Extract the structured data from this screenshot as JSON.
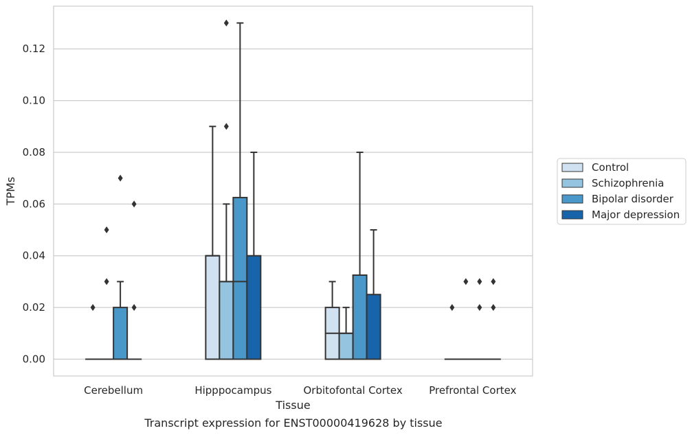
{
  "caption": "Transcript expression for ENST00000419628 by tissue",
  "chart_data": {
    "type": "box",
    "xlabel": "Tissue",
    "ylabel": "TPMs",
    "ylim": [
      -0.0065,
      0.1365
    ],
    "yticks": [
      "0.00",
      "0.02",
      "0.04",
      "0.06",
      "0.08",
      "0.10",
      "0.12"
    ],
    "grid": "horizontal",
    "legend_position": "center-right",
    "categories": [
      "Cerebellum",
      "Hipppocampus",
      "Orbitofontal Cortex",
      "Prefrontal Cortex"
    ],
    "series": [
      {
        "name": "Control",
        "color": "#d0e1f2",
        "boxes": [
          {
            "q1": 0,
            "median": 0,
            "q3": 0,
            "whisker_low": 0,
            "whisker_high": 0,
            "outliers": [
              0.02
            ]
          },
          {
            "q1": 0,
            "median": 0.04,
            "q3": 0.04,
            "whisker_low": 0,
            "whisker_high": 0.09,
            "outliers": []
          },
          {
            "q1": 0,
            "median": 0.01,
            "q3": 0.02,
            "whisker_low": 0,
            "whisker_high": 0.03,
            "outliers": []
          },
          {
            "q1": 0,
            "median": 0,
            "q3": 0,
            "whisker_low": 0,
            "whisker_high": 0,
            "outliers": [
              0.02
            ]
          }
        ]
      },
      {
        "name": "Schizophrenia",
        "color": "#94c4df",
        "boxes": [
          {
            "q1": 0,
            "median": 0,
            "q3": 0,
            "whisker_low": 0,
            "whisker_high": 0,
            "outliers": [
              0.03,
              0.05
            ]
          },
          {
            "q1": 0,
            "median": 0.03,
            "q3": 0.03,
            "whisker_low": 0,
            "whisker_high": 0.06,
            "outliers": [
              0.09,
              0.13
            ]
          },
          {
            "q1": 0,
            "median": 0.01,
            "q3": 0.01,
            "whisker_low": 0,
            "whisker_high": 0.02,
            "outliers": []
          },
          {
            "q1": 0,
            "median": 0,
            "q3": 0,
            "whisker_low": 0,
            "whisker_high": 0,
            "outliers": [
              0.03
            ]
          }
        ]
      },
      {
        "name": "Bipolar disorder",
        "color": "#4a98c9",
        "boxes": [
          {
            "q1": 0,
            "median": 0,
            "q3": 0.02,
            "whisker_low": 0,
            "whisker_high": 0.03,
            "outliers": [
              0.07
            ]
          },
          {
            "q1": 0,
            "median": 0.03,
            "q3": 0.0625,
            "whisker_low": 0,
            "whisker_high": 0.13,
            "outliers": []
          },
          {
            "q1": 0,
            "median": 0,
            "q3": 0.0325,
            "whisker_low": 0,
            "whisker_high": 0.08,
            "outliers": []
          },
          {
            "q1": 0,
            "median": 0,
            "q3": 0,
            "whisker_low": 0,
            "whisker_high": 0,
            "outliers": [
              0.02,
              0.03
            ]
          }
        ]
      },
      {
        "name": "Major depression",
        "color": "#1764ab",
        "boxes": [
          {
            "q1": 0,
            "median": 0,
            "q3": 0,
            "whisker_low": 0,
            "whisker_high": 0,
            "outliers": [
              0.02,
              0.06
            ]
          },
          {
            "q1": 0,
            "median": 0,
            "q3": 0.04,
            "whisker_low": 0,
            "whisker_high": 0.08,
            "outliers": []
          },
          {
            "q1": 0,
            "median": 0,
            "q3": 0.025,
            "whisker_low": 0,
            "whisker_high": 0.05,
            "outliers": []
          },
          {
            "q1": 0,
            "median": 0,
            "q3": 0,
            "whisker_low": 0,
            "whisker_high": 0,
            "outliers": [
              0.02,
              0.03
            ]
          }
        ]
      }
    ]
  }
}
